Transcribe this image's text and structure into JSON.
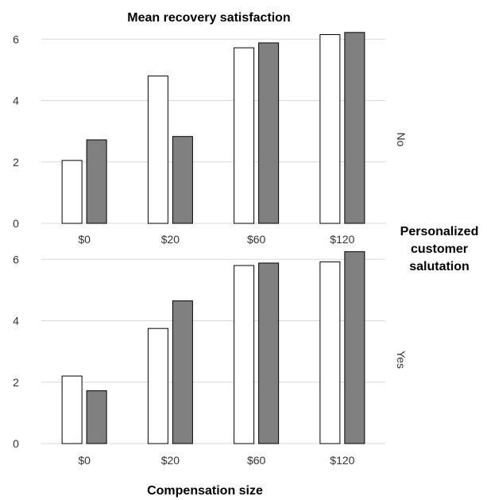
{
  "chart_data": {
    "type": "bar",
    "title": "Mean recovery satisfaction",
    "xlabel": "Compensation size",
    "facet_title": [
      "Personalized",
      "customer",
      "salutation"
    ],
    "categories": [
      "$0",
      "$20",
      "$60",
      "$120"
    ],
    "ylim": [
      0,
      6.5
    ],
    "yticks": [
      "0",
      "2",
      "4",
      "6"
    ],
    "grid": true,
    "colors": {
      "series1": "#ffffff",
      "series2": "#808080",
      "edge": "#000000",
      "grid": "#d9d9d9"
    },
    "panels": [
      {
        "label": "No",
        "series": [
          {
            "values": [
              2.05,
              4.8,
              5.72,
              6.15
            ]
          },
          {
            "values": [
              2.72,
              2.83,
              5.88,
              6.22
            ]
          }
        ]
      },
      {
        "label": "Yes",
        "series": [
          {
            "values": [
              2.2,
              3.75,
              5.8,
              5.92
            ]
          },
          {
            "values": [
              1.72,
              4.65,
              5.88,
              6.25
            ]
          }
        ]
      }
    ]
  }
}
